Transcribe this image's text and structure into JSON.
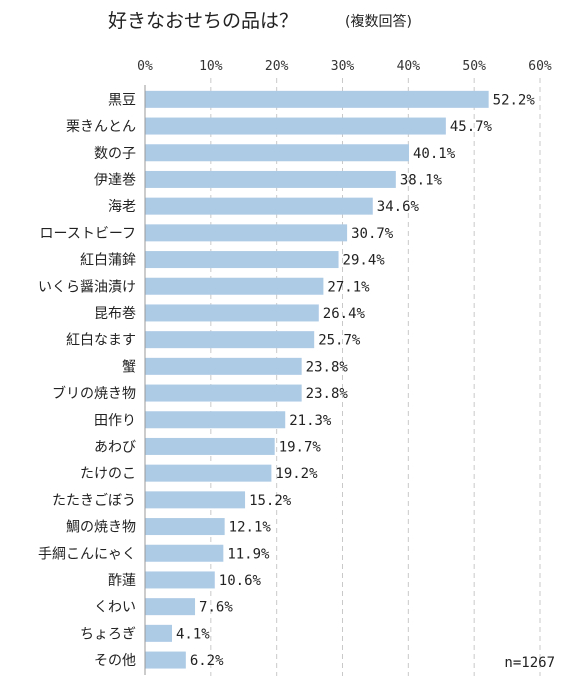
{
  "chart_data": {
    "type": "bar",
    "orientation": "horizontal",
    "title": "好きなおせちの品は？",
    "subtitle": "(複数回答)",
    "categories": [
      "黒豆",
      "栗きんとん",
      "数の子",
      "伊達巻",
      "海老",
      "ローストビーフ",
      "紅白蒲鉾",
      "いくら醤油漬け",
      "昆布巻",
      "紅白なます",
      "蟹",
      "ブリの焼き物",
      "田作り",
      "あわび",
      "たけのこ",
      "たたきごぼう",
      "鯛の焼き物",
      "手綱こんにゃく",
      "酢蓮",
      "くわい",
      "ちょろぎ",
      "その他"
    ],
    "values": [
      52.2,
      45.7,
      40.1,
      38.1,
      34.6,
      30.7,
      29.4,
      27.1,
      26.4,
      25.7,
      23.8,
      23.8,
      21.3,
      19.7,
      19.2,
      15.2,
      12.1,
      11.9,
      10.6,
      7.6,
      4.1,
      6.2
    ],
    "value_labels": [
      "52.2%",
      "45.7%",
      "40.1%",
      "38.1%",
      "34.6%",
      "30.7%",
      "29.4%",
      "27.1%",
      "26.4%",
      "25.7%",
      "23.8%",
      "23.8%",
      "21.3%",
      "19.7%",
      "19.2%",
      "15.2%",
      "12.1%",
      "11.9%",
      "10.6%",
      "7.6%",
      "4.1%",
      "6.2%"
    ],
    "xlim": [
      0,
      60
    ],
    "xticks": [
      "0%",
      "10%",
      "20%",
      "30%",
      "40%",
      "50%",
      "60%"
    ],
    "grid": true,
    "bar_color": "#aecbe6",
    "note": "n=1267"
  }
}
